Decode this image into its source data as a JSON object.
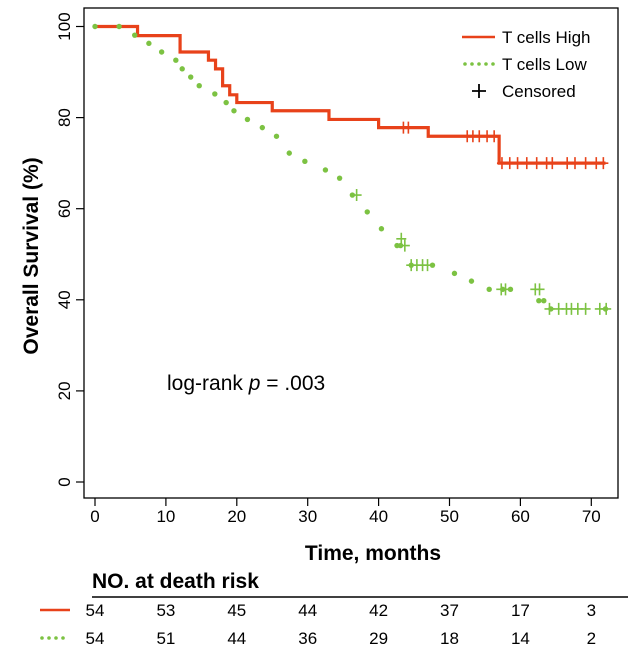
{
  "chart_data": {
    "type": "line",
    "xlabel": "Time, months",
    "ylabel": "Overall Survival (%)",
    "xlim": [
      0,
      73
    ],
    "ylim": [
      -4,
      102
    ],
    "x_ticks": [
      0,
      10,
      20,
      30,
      40,
      50,
      60,
      70
    ],
    "y_ticks": [
      0,
      20,
      40,
      60,
      80,
      100
    ],
    "grid": false,
    "legend_position": "top-right",
    "legend": [
      {
        "label": "T cells High",
        "style": "solid",
        "color": "#e8421a"
      },
      {
        "label": "T cells Low",
        "style": "dotted",
        "color": "#7cc242"
      },
      {
        "label": "Censored",
        "style": "plus",
        "color": "#000000"
      }
    ],
    "annotation": {
      "prefix": "log-rank ",
      "italic": "p",
      "suffix": " = .003"
    },
    "series": [
      {
        "name": "T cells High",
        "color": "#e8421a",
        "style": "step-solid",
        "x": [
          0,
          6,
          12,
          13,
          16,
          17,
          18,
          19,
          20,
          25,
          33,
          40,
          47,
          57,
          72
        ],
        "y": [
          100,
          98,
          94.4,
          94.4,
          92.6,
          90.7,
          87,
          85,
          83.3,
          81.5,
          79.6,
          77.8,
          75.9,
          70,
          70
        ],
        "censored": [
          [
            43.5,
            77.8
          ],
          [
            44.2,
            77.8
          ],
          [
            52.5,
            75.9
          ],
          [
            53.3,
            75.9
          ],
          [
            54.2,
            75.9
          ],
          [
            55.3,
            75.9
          ],
          [
            56.3,
            75.9
          ],
          [
            57.4,
            70
          ],
          [
            58.5,
            70
          ],
          [
            59.6,
            70
          ],
          [
            60.9,
            70
          ],
          [
            62.3,
            70
          ],
          [
            63.7,
            70
          ],
          [
            64.5,
            70
          ],
          [
            66.6,
            70
          ],
          [
            67.7,
            70
          ],
          [
            69.2,
            70
          ],
          [
            70.7,
            70
          ],
          [
            71.7,
            70
          ]
        ]
      },
      {
        "name": "T cells Low",
        "color": "#7cc242",
        "style": "dotted",
        "x": [
          0,
          3.4,
          5.6,
          7.6,
          9.4,
          11.4,
          12.3,
          13.5,
          14.7,
          16.9,
          18.5,
          19.6,
          21.5,
          23.6,
          25.6,
          27.4,
          29.6,
          32.5,
          34.5,
          36.3,
          38.4,
          40.4,
          42.6,
          43.1,
          44.6,
          47.6,
          50.7,
          53.1,
          55.6,
          57.5,
          58.6,
          62.6,
          63.3,
          64.3,
          72
        ],
        "y": [
          100,
          100,
          98.1,
          96.3,
          94.4,
          92.6,
          90.7,
          88.9,
          87,
          85.2,
          83.3,
          81.5,
          79.6,
          77.8,
          75.9,
          72.2,
          70.4,
          68.5,
          66.7,
          63,
          59.3,
          55.6,
          51.9,
          51.9,
          47.6,
          47.6,
          45.8,
          44.1,
          42.3,
          42.3,
          42.3,
          39.8,
          39.8,
          38,
          38
        ],
        "censored": [
          [
            36.9,
            63
          ],
          [
            43.2,
            53.4
          ],
          [
            43.7,
            51.9
          ],
          [
            44.6,
            47.6
          ],
          [
            45.4,
            47.6
          ],
          [
            46.2,
            47.6
          ],
          [
            46.9,
            47.6
          ],
          [
            57.3,
            42.3
          ],
          [
            57.9,
            42.3
          ],
          [
            62.1,
            42.3
          ],
          [
            62.7,
            42.3
          ],
          [
            64.1,
            38
          ],
          [
            65.4,
            38
          ],
          [
            66.5,
            38
          ],
          [
            67.2,
            38
          ],
          [
            68.1,
            38
          ],
          [
            69.2,
            38
          ],
          [
            71.2,
            38
          ],
          [
            72.1,
            38
          ]
        ]
      }
    ],
    "risk_table": {
      "title": "NO. at death risk",
      "times": [
        0,
        10,
        20,
        30,
        40,
        50,
        60,
        70
      ],
      "rows": [
        {
          "name": "T cells High",
          "color": "#e8421a",
          "style": "solid",
          "values": [
            54,
            53,
            45,
            44,
            42,
            37,
            17,
            3
          ]
        },
        {
          "name": "T cells Low",
          "color": "#7cc242",
          "style": "dotted",
          "values": [
            54,
            51,
            44,
            36,
            29,
            18,
            14,
            2
          ]
        }
      ]
    }
  }
}
